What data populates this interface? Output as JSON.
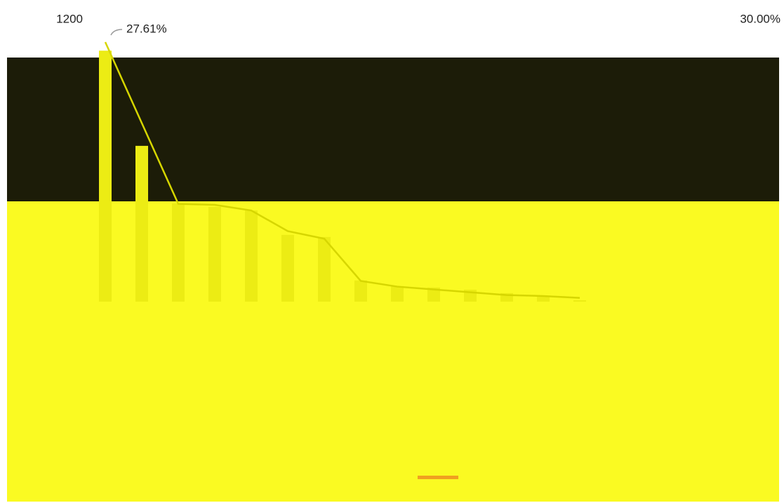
{
  "chart_data": {
    "type": "bar-line",
    "categories": [
      null,
      null,
      null,
      null,
      null,
      null,
      null,
      null,
      null,
      null,
      null,
      null,
      null,
      null
    ],
    "series": [
      {
        "type": "bar",
        "color": "#ecec14",
        "values": [
          1068,
          663,
          418,
          403,
          388,
          284,
          275,
          90,
          66,
          60,
          51,
          36,
          21,
          6
        ]
      },
      {
        "type": "line",
        "axis": "y2",
        "color": "#d6d600",
        "values": [
          27.61,
          19.0,
          10.4,
          10.3,
          9.7,
          7.5,
          6.7,
          2.2,
          1.6,
          1.3,
          1.0,
          0.7,
          0.6,
          0.4
        ],
        "value_labels": [
          "27.61%",
          null,
          null,
          null,
          null,
          null,
          null,
          null,
          null,
          null,
          null,
          null,
          null,
          null
        ]
      }
    ],
    "ylim": [
      0,
      1200
    ],
    "yticks": [
      1200
    ],
    "y2lim": [
      0,
      30
    ],
    "y2ticks": [
      {
        "value": 30,
        "label": "30.00%"
      }
    ]
  }
}
